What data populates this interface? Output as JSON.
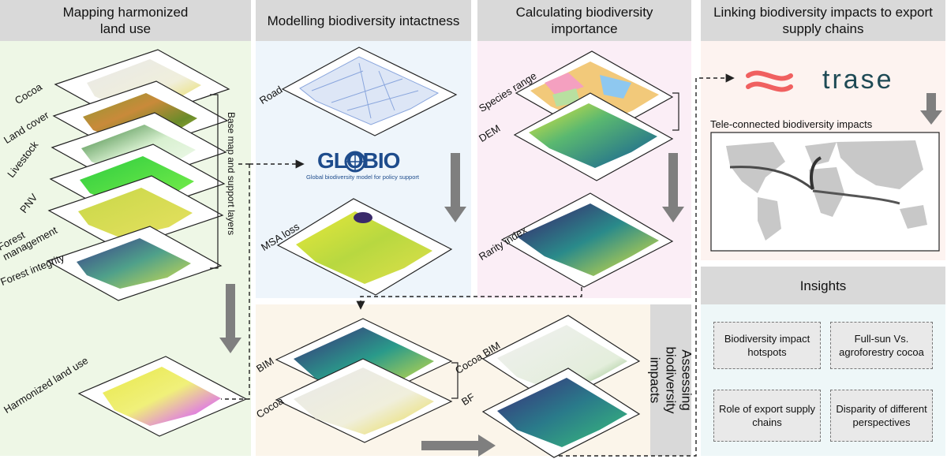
{
  "panels": {
    "land_use": {
      "title": "Mapping harmonized land use",
      "layers": [
        "Cocoa",
        "Land cover",
        "Livestock",
        "PNV",
        "Forest management",
        "Forest integrity"
      ],
      "bracket_label": "Base map and support layers",
      "output_label": "Harmonized land use"
    },
    "intactness": {
      "title": "Modelling biodiversity intactness",
      "road_label": "Road",
      "globio_logo": "GLOBIO",
      "globio_tagline": "Global biodiversity model for policy support",
      "msa_label": "MSA loss"
    },
    "importance": {
      "title": "Calculating biodiversity importance",
      "species_label": "Species range",
      "dem_label": "DEM",
      "rarity_label": "Rarity index"
    },
    "supply": {
      "title": "Linking biodiversity impacts to export supply chains",
      "trase_logo": "trase",
      "telecon_label": "Tele-connected biodiversity impacts"
    },
    "assessing": {
      "side_title": "Assessing biodiversity impacts",
      "bim_label": "BIM",
      "cocoa_label": "Cocoa",
      "cocoa_bim_label": "Cocoa BIM",
      "bf_label": "BF"
    },
    "insights": {
      "title": "Insights",
      "items": [
        "Biodiversity impact hotspots",
        "Full-sun Vs. agroforestry cocoa",
        "Role of export supply chains",
        "Disparity of different perspectives"
      ]
    }
  },
  "colors": {
    "header_bg": "#d9d9d9",
    "land_use_bg": "#eef7e6",
    "intactness_bg": "#eef5fb",
    "importance_bg": "#fbeef6",
    "assessing_bg": "#fbf5ea",
    "supply_bg": "#fdf3f0",
    "insights_bg": "#eef7f8",
    "arrow_gray": "#7f7f7f"
  }
}
